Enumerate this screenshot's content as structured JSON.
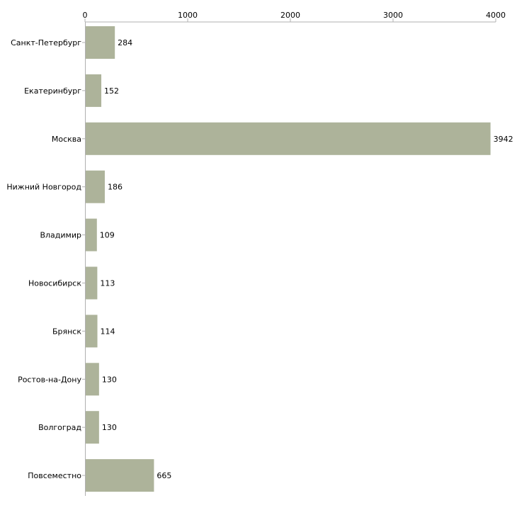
{
  "chart_data": {
    "type": "bar",
    "orientation": "horizontal",
    "title": "",
    "xlabel": "",
    "ylabel": "",
    "xlim": [
      0,
      4000
    ],
    "ticks": [
      0,
      1000,
      2000,
      3000,
      4000
    ],
    "tick_labels": [
      "0",
      "1000",
      "2000",
      "3000",
      "4000"
    ],
    "axis_position": "top",
    "grid": false,
    "categories": [
      "Санкт-Петербург",
      "Екатеринбург",
      "Москва",
      "Нижний Новгород",
      "Владимир",
      "Новосибирск",
      "Брянск",
      "Ростов-на-Дону",
      "Волгоград",
      "Повсеместно"
    ],
    "values": [
      284,
      152,
      3942,
      186,
      109,
      113,
      114,
      130,
      130,
      665
    ],
    "value_labels": [
      "284",
      "152",
      "3942",
      "186",
      "109",
      "113",
      "114",
      "130",
      "130",
      "665"
    ],
    "bar_color": "#adb39a",
    "axis_color": "#b0b0b0"
  }
}
